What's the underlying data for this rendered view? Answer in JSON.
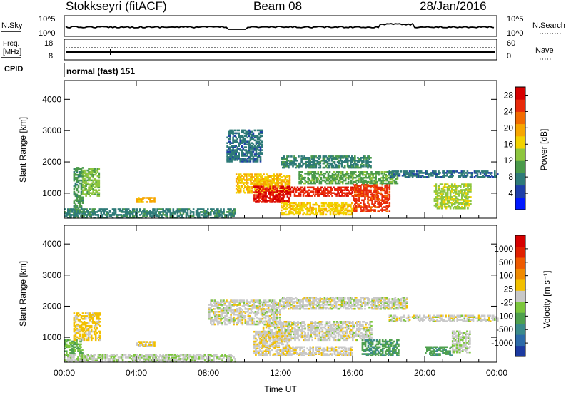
{
  "header": {
    "station": "Stokkseyri (fitACF)",
    "beam": "Beam 08",
    "date": "28/Jan/2016"
  },
  "strip_nsky": {
    "label": "N.Sky",
    "left_ticks": [
      "10^5",
      "10^0"
    ],
    "right_ticks": [
      "10^5",
      "10^0"
    ],
    "right_label": "N.Search"
  },
  "strip_freq": {
    "label_line1": "Freq.",
    "label_line2": "[MHz]",
    "left_ticks": [
      "18",
      "8"
    ],
    "right_ticks": [
      "60",
      "0"
    ],
    "right_label": "Nave"
  },
  "strip_cpid": {
    "label": "CPID",
    "text": "normal (fast) 151"
  },
  "colors": {
    "power": [
      "#0018ff",
      "#1e3fa8",
      "#2e7a78",
      "#4a9a4a",
      "#8ec63f",
      "#f2d200",
      "#f7a600",
      "#f26b00",
      "#e82a0a",
      "#d60000"
    ],
    "velocity": [
      "#1c3aa0",
      "#2c6aa8",
      "#3a8a8a",
      "#4ea04e",
      "#7cc63c",
      "#c8c8c8",
      "#f2c000",
      "#f08a00",
      "#ee5a00",
      "#e02000",
      "#d60000"
    ]
  },
  "chart_data": [
    {
      "type": "heatmap",
      "name": "power-panel",
      "xlabel": "",
      "ylabel": "Slant Range [km]",
      "x_ticks": [
        "00:00",
        "04:00",
        "08:00",
        "12:00",
        "16:00",
        "20:00",
        "00:00"
      ],
      "y_ticks": [
        "1000",
        "2000",
        "3000",
        "4000"
      ],
      "xlim_hours": [
        0,
        24
      ],
      "ylim_km": [
        200,
        4600
      ],
      "colorbar": {
        "label": "Power [dB]",
        "ticks": [
          "4",
          "8",
          "12",
          "16",
          "20",
          "24",
          "28"
        ],
        "range": [
          0,
          30
        ]
      },
      "regions": [
        {
          "t": [
            0.5,
            1.0
          ],
          "r": [
            400,
            1800
          ],
          "v": 10
        },
        {
          "t": [
            1.0,
            1.9
          ],
          "r": [
            900,
            1800
          ],
          "v": 13
        },
        {
          "t": [
            0.0,
            9.5
          ],
          "r": [
            200,
            500
          ],
          "v": 8
        },
        {
          "t": [
            4.0,
            5.0
          ],
          "r": [
            700,
            850
          ],
          "v": 19
        },
        {
          "t": [
            9.5,
            12.5
          ],
          "r": [
            1000,
            1600
          ],
          "v": 18
        },
        {
          "t": [
            10.5,
            12.5
          ],
          "r": [
            700,
            1200
          ],
          "v": 27
        },
        {
          "t": [
            12.5,
            16.0
          ],
          "r": [
            900,
            1200
          ],
          "v": 26
        },
        {
          "t": [
            12.0,
            16.0
          ],
          "r": [
            300,
            700
          ],
          "v": 17
        },
        {
          "t": [
            16.0,
            18.0
          ],
          "r": [
            400,
            1300
          ],
          "v": 25
        },
        {
          "t": [
            13.0,
            18.5
          ],
          "r": [
            1300,
            1700
          ],
          "v": 11
        },
        {
          "t": [
            12.0,
            17.0
          ],
          "r": [
            1800,
            2200
          ],
          "v": 8
        },
        {
          "t": [
            18.0,
            24.0
          ],
          "r": [
            1500,
            1700
          ],
          "v": 7
        },
        {
          "t": [
            20.5,
            22.5
          ],
          "r": [
            500,
            1300
          ],
          "v": 14
        },
        {
          "t": [
            9.0,
            11.0
          ],
          "r": [
            2000,
            3000
          ],
          "v": 7
        }
      ]
    },
    {
      "type": "heatmap",
      "name": "velocity-panel",
      "xlabel": "Time UT",
      "ylabel": "Slant Range [km]",
      "x_ticks": [
        "00:00",
        "04:00",
        "08:00",
        "12:00",
        "16:00",
        "20:00",
        "00:00"
      ],
      "y_ticks": [
        "1000",
        "2000",
        "3000",
        "4000"
      ],
      "xlim_hours": [
        0,
        24
      ],
      "ylim_km": [
        200,
        4600
      ],
      "colorbar": {
        "label": "Velocity [m s⁻¹]",
        "ticks": [
          "1000",
          "500",
          "100",
          "25",
          "-25",
          "-100",
          "-500",
          "-1000"
        ],
        "range": [
          -1000,
          1000
        ]
      },
      "regions": [
        {
          "t": [
            0.0,
            1.0
          ],
          "r": [
            400,
            900
          ],
          "v": -300
        },
        {
          "t": [
            0.5,
            2.0
          ],
          "r": [
            900,
            1800
          ],
          "v": 150
        },
        {
          "t": [
            0.0,
            9.5
          ],
          "r": [
            200,
            450
          ],
          "v": -50
        },
        {
          "t": [
            4.0,
            5.0
          ],
          "r": [
            700,
            850
          ],
          "v": 90
        },
        {
          "t": [
            8.0,
            12.0
          ],
          "r": [
            1400,
            2200
          ],
          "v": 0
        },
        {
          "t": [
            11.0,
            17.0
          ],
          "r": [
            900,
            1500
          ],
          "v": 0
        },
        {
          "t": [
            10.5,
            12.5
          ],
          "r": [
            400,
            1200
          ],
          "v": 60
        },
        {
          "t": [
            12.0,
            16.0
          ],
          "r": [
            400,
            700
          ],
          "v": 40
        },
        {
          "t": [
            16.5,
            18.5
          ],
          "r": [
            400,
            900
          ],
          "v": -400
        },
        {
          "t": [
            12.0,
            19.0
          ],
          "r": [
            1900,
            2300
          ],
          "v": 0
        },
        {
          "t": [
            18.0,
            24.0
          ],
          "r": [
            1500,
            1700
          ],
          "v": 0
        },
        {
          "t": [
            20.0,
            21.5
          ],
          "r": [
            400,
            700
          ],
          "v": -400
        },
        {
          "t": [
            21.5,
            22.5
          ],
          "r": [
            500,
            1200
          ],
          "v": -50
        }
      ]
    }
  ]
}
